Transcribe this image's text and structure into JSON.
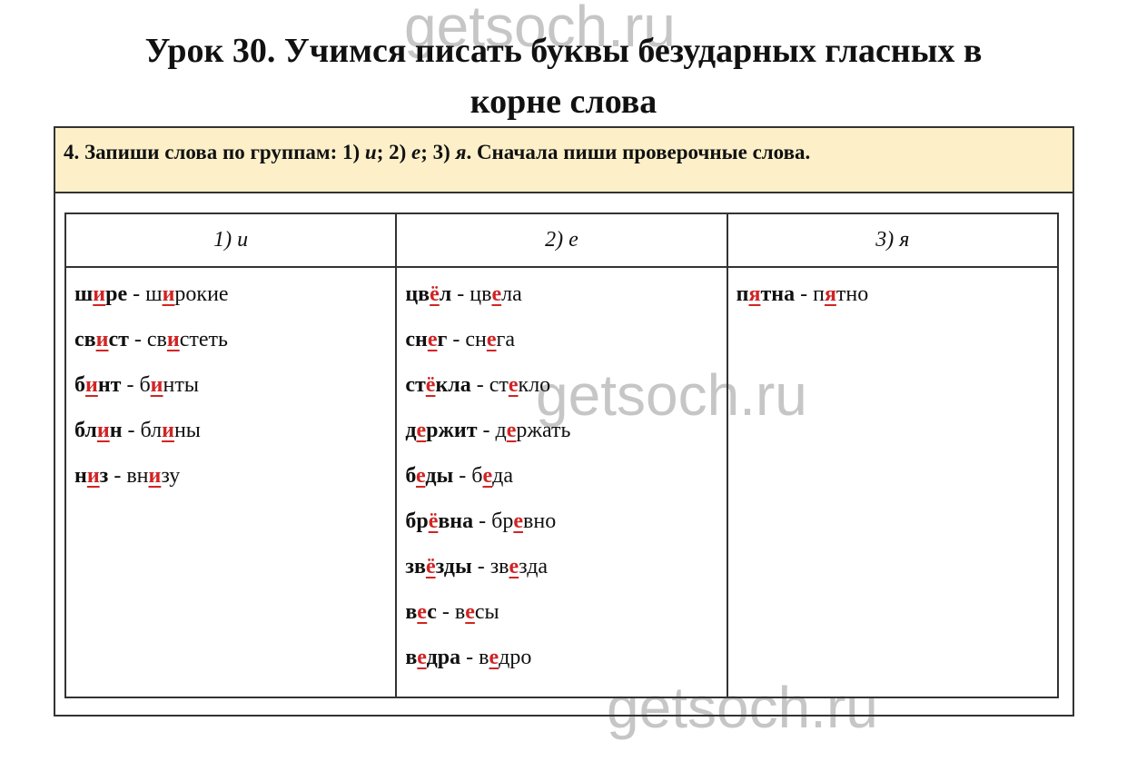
{
  "title_line1": "Урок 30. Учимся писать буквы безударных гласных в",
  "title_line2": "корне слова",
  "task": {
    "number": "4.",
    "text1": "Запиши слова по группам: 1) ",
    "g1": "и",
    "text2": "; 2) ",
    "g2": "е",
    "text3": "; 3) ",
    "g3": "я",
    "text4": ". Сначала пиши проверочные слова."
  },
  "columns": [
    {
      "header": "1)  и",
      "entries": [
        {
          "w": [
            "ш",
            "и",
            "ре"
          ],
          "c": [
            "ш",
            "и",
            "рокие"
          ]
        },
        {
          "w": [
            "св",
            "и",
            "ст"
          ],
          "c": [
            "св",
            "и",
            "стеть"
          ]
        },
        {
          "w": [
            "б",
            "и",
            "нт"
          ],
          "c": [
            "б",
            "и",
            "нты"
          ]
        },
        {
          "w": [
            "бл",
            "и",
            "н"
          ],
          "c": [
            "бл",
            "и",
            "ны"
          ]
        },
        {
          "w": [
            "н",
            "и",
            "з"
          ],
          "c": [
            "вн",
            "и",
            "зу"
          ]
        }
      ]
    },
    {
      "header": "2)  е",
      "entries": [
        {
          "w": [
            "цв",
            "ё",
            "л"
          ],
          "c": [
            "цв",
            "е",
            "ла"
          ]
        },
        {
          "w": [
            "сн",
            "е",
            "г"
          ],
          "c": [
            "сн",
            "е",
            "га"
          ]
        },
        {
          "w": [
            "ст",
            "ё",
            "кла"
          ],
          "c": [
            "ст",
            "е",
            "кло"
          ]
        },
        {
          "w": [
            "д",
            "е",
            "ржит"
          ],
          "c": [
            "д",
            "е",
            "ржать"
          ]
        },
        {
          "w": [
            "б",
            "е",
            "ды"
          ],
          "c": [
            "б",
            "е",
            "да"
          ]
        },
        {
          "w": [
            "бр",
            "ё",
            "вна"
          ],
          "c": [
            "бр",
            "е",
            "вно"
          ]
        },
        {
          "w": [
            "зв",
            "ё",
            "зды"
          ],
          "c": [
            "зв",
            "е",
            "зда"
          ]
        },
        {
          "w": [
            "в",
            "е",
            "с"
          ],
          "c": [
            "в",
            "е",
            "сы"
          ]
        },
        {
          "w": [
            "в",
            "е",
            "дра"
          ],
          "c": [
            "в",
            "е",
            "дро"
          ]
        }
      ]
    },
    {
      "header": "3)  я",
      "entries": [
        {
          "w": [
            "п",
            "я",
            "тна"
          ],
          "c": [
            "п",
            "я",
            "тно"
          ]
        }
      ]
    }
  ],
  "dash": " - ",
  "watermarks": [
    "getsoch.ru",
    "getsoch.ru",
    "getsoch.ru"
  ]
}
